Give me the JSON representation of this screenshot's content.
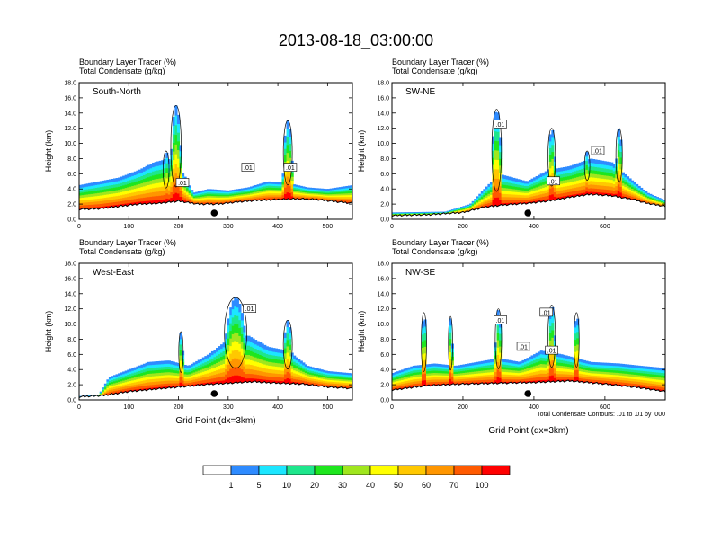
{
  "title": "2013-08-18_03:00:00",
  "panel_header": {
    "line1": "Boundary Layer Tracer    (%)",
    "line2": "Total Condensate    (g/kg)"
  },
  "y_axis_label": "Height (km)",
  "x_axis_label": "Grid Point (dx=3km)",
  "contour_note": "Total Condensate Contours: .01 to .01 by .000",
  "colorbar": {
    "colors": [
      "#ffffff",
      "#2e8bff",
      "#1ce6ff",
      "#1ee68c",
      "#1ee61e",
      "#a0e61e",
      "#ffff00",
      "#ffc800",
      "#ff9600",
      "#ff5a00",
      "#ff0000"
    ],
    "labels": [
      "1",
      "5",
      "10",
      "20",
      "30",
      "40",
      "50",
      "60",
      "70",
      "100"
    ]
  },
  "chart_data": [
    {
      "type": "heatmap",
      "name": "South-North",
      "xlim": [
        0,
        550
      ],
      "ylim": [
        0,
        18
      ],
      "xticks": [
        "0",
        "100",
        "200",
        "300",
        "400",
        "500"
      ],
      "yticks": [
        "0.0",
        "2.0",
        "4.0",
        "6.0",
        "8.0",
        "10.0",
        "12.0",
        "14.0",
        "16.0",
        "18.0"
      ],
      "terrain": [
        [
          0,
          1.2
        ],
        [
          40,
          1.3
        ],
        [
          80,
          1.6
        ],
        [
          120,
          1.9
        ],
        [
          160,
          2.0
        ],
        [
          200,
          2.3
        ],
        [
          240,
          1.9
        ],
        [
          280,
          1.9
        ],
        [
          320,
          2.2
        ],
        [
          360,
          2.4
        ],
        [
          400,
          2.5
        ],
        [
          440,
          2.6
        ],
        [
          480,
          2.5
        ],
        [
          520,
          2.2
        ],
        [
          550,
          2.0
        ]
      ],
      "bl_top": [
        [
          0,
          4.5
        ],
        [
          40,
          5.0
        ],
        [
          80,
          5.5
        ],
        [
          120,
          6.5
        ],
        [
          150,
          7.5
        ],
        [
          180,
          8.0
        ],
        [
          210,
          6.0
        ],
        [
          230,
          3.5
        ],
        [
          260,
          4.0
        ],
        [
          300,
          3.8
        ],
        [
          340,
          4.2
        ],
        [
          380,
          5.0
        ],
        [
          420,
          4.8
        ],
        [
          460,
          4.2
        ],
        [
          500,
          4.0
        ],
        [
          550,
          4.5
        ]
      ],
      "plumes": [
        {
          "x": 195,
          "top": 15.0,
          "hw": 14
        },
        {
          "x": 420,
          "top": 13.0,
          "hw": 12
        },
        {
          "x": 175,
          "top": 9.0,
          "hw": 8
        }
      ],
      "contour_labels": [
        {
          "x": 208,
          "y": 4.8,
          "text": ".01"
        },
        {
          "x": 340,
          "y": 6.8,
          "text": ".01"
        },
        {
          "x": 425,
          "y": 6.8,
          "text": ".01"
        }
      ],
      "station": 272
    },
    {
      "type": "heatmap",
      "name": "SW-NE",
      "xlim": [
        0,
        770
      ],
      "ylim": [
        0,
        18
      ],
      "xticks": [
        "0",
        "200",
        "400",
        "600"
      ],
      "yticks": [
        "0.0",
        "2.0",
        "4.0",
        "6.0",
        "8.0",
        "10.0",
        "12.0",
        "14.0",
        "16.0",
        "18.0"
      ],
      "terrain": [
        [
          0,
          0.4
        ],
        [
          100,
          0.5
        ],
        [
          200,
          0.8
        ],
        [
          260,
          1.5
        ],
        [
          320,
          1.8
        ],
        [
          380,
          2.0
        ],
        [
          440,
          2.3
        ],
        [
          500,
          2.8
        ],
        [
          560,
          3.2
        ],
        [
          620,
          3.0
        ],
        [
          680,
          2.5
        ],
        [
          720,
          2.0
        ],
        [
          770,
          1.6
        ]
      ],
      "bl_top": [
        [
          0,
          0.9
        ],
        [
          150,
          1.0
        ],
        [
          220,
          2.0
        ],
        [
          260,
          4.0
        ],
        [
          300,
          6.0
        ],
        [
          340,
          5.5
        ],
        [
          380,
          5.0
        ],
        [
          440,
          6.5
        ],
        [
          500,
          7.0
        ],
        [
          560,
          8.0
        ],
        [
          620,
          7.5
        ],
        [
          680,
          5.0
        ],
        [
          720,
          3.5
        ],
        [
          770,
          2.5
        ]
      ],
      "plumes": [
        {
          "x": 295,
          "top": 14.5,
          "hw": 18
        },
        {
          "x": 450,
          "top": 12.0,
          "hw": 14
        },
        {
          "x": 640,
          "top": 12.0,
          "hw": 12
        },
        {
          "x": 550,
          "top": 9.0,
          "hw": 10
        }
      ],
      "contour_labels": [
        {
          "x": 305,
          "y": 12.5,
          "text": ".01"
        },
        {
          "x": 455,
          "y": 5.0,
          "text": ".01"
        },
        {
          "x": 580,
          "y": 9.0,
          "text": ".01"
        }
      ],
      "station": 383
    },
    {
      "type": "heatmap",
      "name": "West-East",
      "xlim": [
        0,
        550
      ],
      "ylim": [
        0,
        18
      ],
      "xticks": [
        "0",
        "100",
        "200",
        "300",
        "400",
        "500"
      ],
      "yticks": [
        "0.0",
        "2.0",
        "4.0",
        "6.0",
        "8.0",
        "10.0",
        "12.0",
        "14.0",
        "16.0",
        "18.0"
      ],
      "terrain": [
        [
          0,
          0.3
        ],
        [
          50,
          0.5
        ],
        [
          100,
          1.0
        ],
        [
          150,
          1.3
        ],
        [
          200,
          1.6
        ],
        [
          250,
          1.9
        ],
        [
          300,
          2.1
        ],
        [
          350,
          2.3
        ],
        [
          400,
          2.1
        ],
        [
          450,
          2.0
        ],
        [
          500,
          1.6
        ],
        [
          550,
          1.4
        ]
      ],
      "bl_top": [
        [
          0,
          0.5
        ],
        [
          40,
          0.7
        ],
        [
          60,
          3.0
        ],
        [
          100,
          4.0
        ],
        [
          140,
          5.0
        ],
        [
          180,
          5.2
        ],
        [
          220,
          4.5
        ],
        [
          260,
          6.0
        ],
        [
          300,
          8.0
        ],
        [
          340,
          8.5
        ],
        [
          380,
          7.0
        ],
        [
          420,
          6.5
        ],
        [
          460,
          4.5
        ],
        [
          500,
          3.8
        ],
        [
          550,
          3.5
        ]
      ],
      "plumes": [
        {
          "x": 315,
          "top": 13.5,
          "hw": 30
        },
        {
          "x": 420,
          "top": 10.5,
          "hw": 12
        },
        {
          "x": 205,
          "top": 9.0,
          "hw": 6
        }
      ],
      "contour_labels": [
        {
          "x": 343,
          "y": 12.0,
          "text": ".01"
        }
      ],
      "station": 272
    },
    {
      "type": "heatmap",
      "name": "NW-SE",
      "xlim": [
        0,
        770
      ],
      "ylim": [
        0,
        18
      ],
      "xticks": [
        "0",
        "200",
        "400",
        "600"
      ],
      "yticks": [
        "0.0",
        "2.0",
        "4.0",
        "6.0",
        "8.0",
        "10.0",
        "12.0",
        "14.0",
        "16.0",
        "18.0"
      ],
      "terrain": [
        [
          0,
          1.2
        ],
        [
          100,
          1.8
        ],
        [
          200,
          2.0
        ],
        [
          300,
          2.1
        ],
        [
          400,
          2.2
        ],
        [
          500,
          2.4
        ],
        [
          600,
          2.0
        ],
        [
          700,
          1.5
        ],
        [
          770,
          1.0
        ]
      ],
      "bl_top": [
        [
          0,
          3.5
        ],
        [
          60,
          4.5
        ],
        [
          120,
          4.8
        ],
        [
          180,
          4.5
        ],
        [
          240,
          5.0
        ],
        [
          300,
          5.5
        ],
        [
          360,
          5.0
        ],
        [
          420,
          6.5
        ],
        [
          480,
          6.0
        ],
        [
          560,
          5.0
        ],
        [
          640,
          4.8
        ],
        [
          700,
          4.5
        ],
        [
          770,
          4.2
        ]
      ],
      "plumes": [
        {
          "x": 90,
          "top": 11.5,
          "hw": 10
        },
        {
          "x": 300,
          "top": 12.0,
          "hw": 12
        },
        {
          "x": 450,
          "top": 12.5,
          "hw": 14
        },
        {
          "x": 520,
          "top": 11.5,
          "hw": 10
        },
        {
          "x": 165,
          "top": 11.0,
          "hw": 8
        }
      ],
      "contour_labels": [
        {
          "x": 305,
          "y": 10.5,
          "text": ".01"
        },
        {
          "x": 370,
          "y": 7.0,
          "text": ".01"
        },
        {
          "x": 450,
          "y": 6.5,
          "text": ".01"
        },
        {
          "x": 435,
          "y": 11.5,
          "text": ".01"
        }
      ],
      "station": 383
    }
  ]
}
